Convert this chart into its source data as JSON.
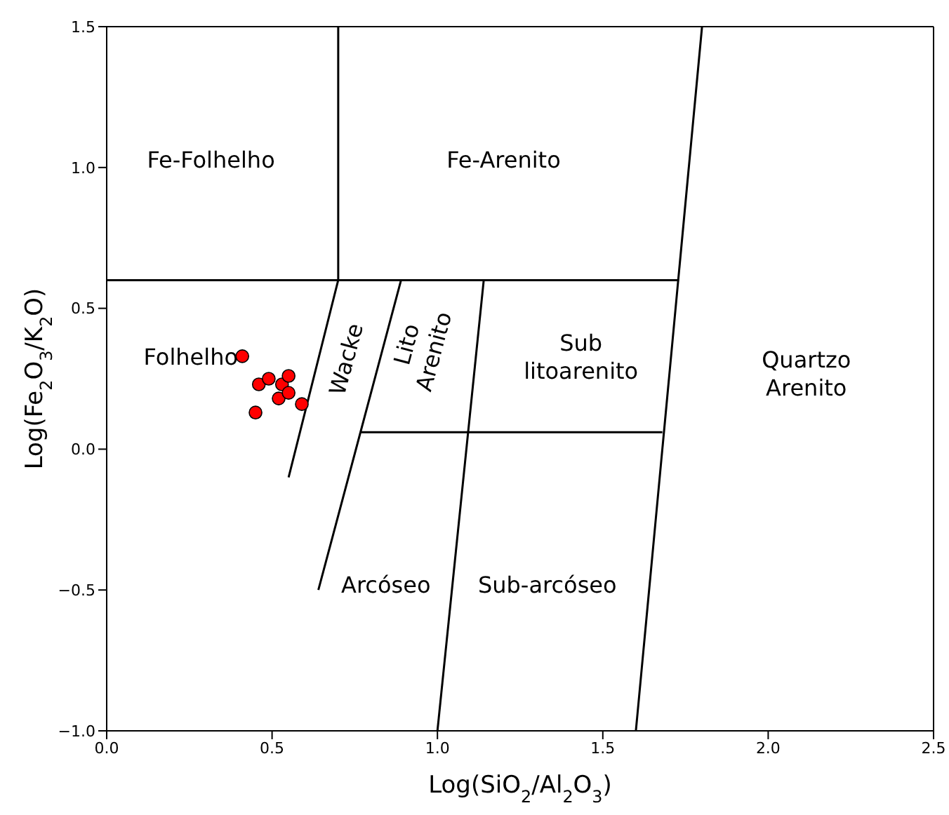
{
  "chart_data": {
    "type": "scatter",
    "xlabel": "Log(SiO$_{2}$/Al$_{2}$O$_{3}$)",
    "ylabel": "Log(Fe$_{2}$O$_{3}$/K$_{2}$O)",
    "xlim": [
      0,
      2.5
    ],
    "ylim": [
      -1,
      1.5
    ],
    "xticks": [
      {
        "value": 0,
        "label": "0.0"
      },
      {
        "value": 0.5,
        "label": "0.5"
      },
      {
        "value": 1,
        "label": "1.0"
      },
      {
        "value": 1.5,
        "label": "1.5"
      },
      {
        "value": 2,
        "label": "2.0"
      },
      {
        "value": 2.5,
        "label": "2.5"
      }
    ],
    "yticks": [
      {
        "value": -1,
        "label": "−1.0"
      },
      {
        "value": -0.5,
        "label": "−0.5"
      },
      {
        "value": 0,
        "label": "0.0"
      },
      {
        "value": 0.5,
        "label": "0.5"
      },
      {
        "value": 1,
        "label": "1.0"
      },
      {
        "value": 1.5,
        "label": "1.5"
      }
    ],
    "grid": false,
    "legend": false,
    "series": [
      {
        "color": "#ff0000",
        "marker": "circle",
        "x": [
          0.41,
          0.46,
          0.49,
          0.53,
          0.55,
          0.52,
          0.55,
          0.45,
          0.59
        ],
        "values": [
          0.33,
          0.23,
          0.25,
          0.23,
          0.26,
          0.18,
          0.2,
          0.13,
          0.16
        ]
      },
      {
        "type": "line",
        "color": "#000000",
        "marker": "none",
        "x": [
          0,
          1.73
        ],
        "values": [
          0.6,
          0.6
        ]
      },
      {
        "type": "line",
        "color": "#000000",
        "marker": "none",
        "x": [
          0.7,
          0.7,
          0.55
        ],
        "values": [
          1.5,
          0.6,
          -0.1
        ]
      },
      {
        "type": "line",
        "color": "#000000",
        "marker": "none",
        "x": [
          0.89,
          0.64
        ],
        "values": [
          0.6,
          -0.5
        ]
      },
      {
        "type": "line",
        "color": "#000000",
        "marker": "none",
        "x": [
          1.14,
          1.0
        ],
        "values": [
          0.6,
          -1.0
        ]
      },
      {
        "type": "line",
        "color": "#000000",
        "marker": "none",
        "x": [
          0.77,
          1.68
        ],
        "values": [
          0.06,
          0.06
        ]
      },
      {
        "type": "line",
        "color": "#000000",
        "marker": "none",
        "x": [
          1.8,
          1.6
        ],
        "values": [
          1.5,
          -1.0
        ]
      }
    ],
    "annotations": [
      "Fe-Folhelho",
      "Fe-Arenito",
      "Folhelho",
      "Wacke",
      "Lito\nArenito",
      "Sub\nlitoarenito",
      "Quartzo\nArenito",
      "Arcóseo",
      "Sub-arcóseo"
    ]
  }
}
